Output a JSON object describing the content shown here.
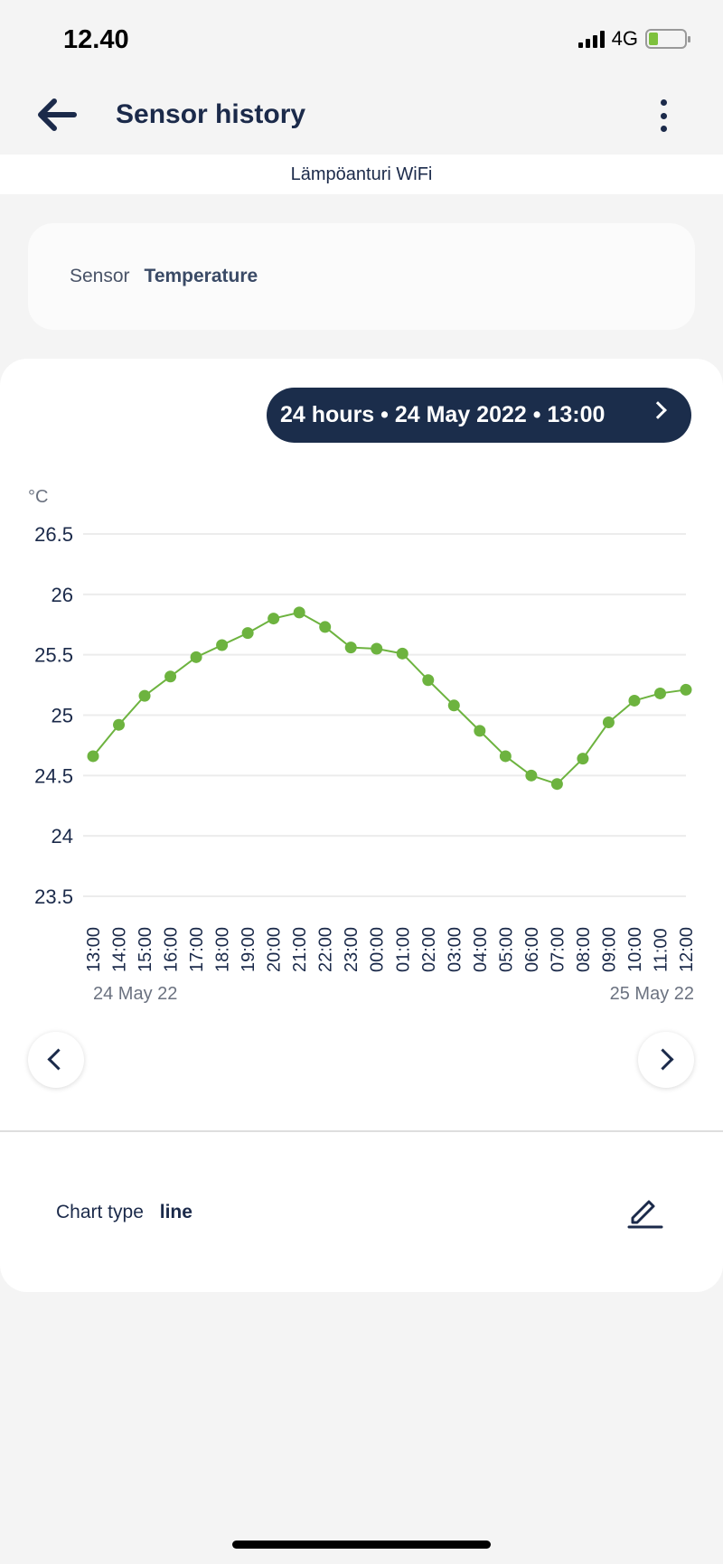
{
  "status_bar": {
    "time": "12.40",
    "network": "4G",
    "battery_level": 0.25
  },
  "header": {
    "title": "Sensor history",
    "back_icon": "arrow-left-icon",
    "menu_icon": "more-vertical-icon"
  },
  "device_name": "Lämpöanturi WiFi",
  "sensor": {
    "label": "Sensor",
    "value": "Temperature"
  },
  "range_pill": {
    "label": "24 hours • 24 May 2022 • 13:00"
  },
  "chart_settings": {
    "label": "Chart type",
    "value": "line"
  },
  "colors": {
    "accent": "#1b2d4b",
    "line": "#6db33f"
  },
  "chart_data": {
    "type": "line",
    "ylabel": "°C",
    "ylim": [
      23.5,
      26.5
    ],
    "yticks": [
      "26.5",
      "26",
      "25.5",
      "25",
      "24.5",
      "24",
      "23.5"
    ],
    "categories": [
      "13:00",
      "14:00",
      "15:00",
      "16:00",
      "17:00",
      "18:00",
      "19:00",
      "20:00",
      "21:00",
      "22:00",
      "23:00",
      "00:00",
      "01:00",
      "02:00",
      "03:00",
      "04:00",
      "05:00",
      "06:00",
      "07:00",
      "08:00",
      "09:00",
      "10:00",
      "11:00",
      "12:00"
    ],
    "values": [
      24.66,
      24.92,
      25.16,
      25.32,
      25.48,
      25.58,
      25.68,
      25.8,
      25.85,
      25.73,
      25.56,
      25.55,
      25.51,
      25.29,
      25.08,
      24.87,
      24.66,
      24.5,
      24.43,
      24.64,
      24.94,
      25.12,
      25.18,
      25.21
    ],
    "start_date": "24 May 22",
    "end_date": "25 May 22",
    "grid": true
  }
}
